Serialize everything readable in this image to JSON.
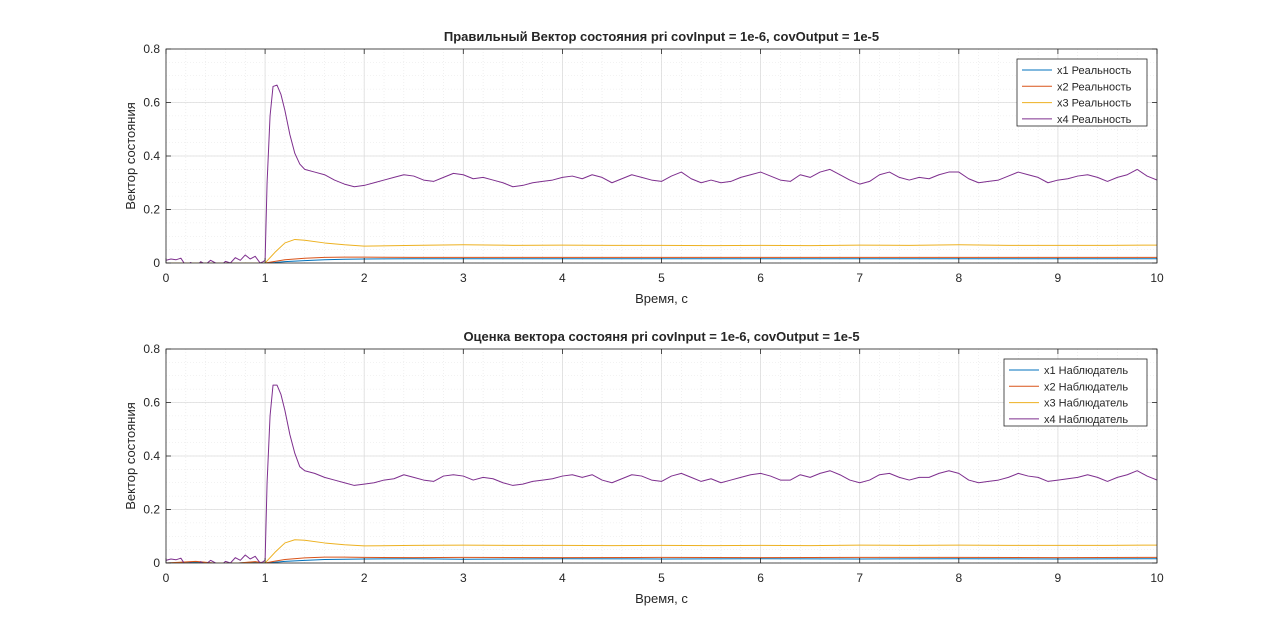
{
  "chart_data": [
    {
      "type": "line",
      "title": "Правильный Вектор состояния pri covInput = 1e-6, covOutput = 1e-5",
      "xlabel": "Время, с",
      "ylabel": "Вектор состояния",
      "xlim": [
        0,
        10
      ],
      "ylim": [
        0,
        0.8
      ],
      "xticks": [
        0,
        1,
        2,
        3,
        4,
        5,
        6,
        7,
        8,
        9,
        10
      ],
      "yticks": [
        0,
        0.2,
        0.4,
        0.6,
        0.8
      ],
      "ytick_labels": [
        "0",
        "0.2",
        "0.4",
        "0.6",
        "0.8"
      ],
      "grid": true,
      "minor_grid": true,
      "legend_position": "top-right",
      "series": [
        {
          "name": "x1 Реальность",
          "color": "#0072BD",
          "x": [
            0,
            1.0,
            1.1,
            1.2,
            1.4,
            1.6,
            1.8,
            2.0,
            2.5,
            3,
            4,
            5,
            6,
            7,
            8,
            9,
            10
          ],
          "y": [
            0,
            0,
            0.002,
            0.005,
            0.009,
            0.012,
            0.014,
            0.015,
            0.016,
            0.016,
            0.016,
            0.016,
            0.016,
            0.016,
            0.016,
            0.016,
            0.016
          ]
        },
        {
          "name": "x2 Реальность",
          "color": "#D95319",
          "x": [
            0,
            1.0,
            1.1,
            1.2,
            1.4,
            1.6,
            1.8,
            2.0,
            2.5,
            3,
            4,
            5,
            6,
            7,
            8,
            9,
            10
          ],
          "y": [
            0,
            0,
            0.006,
            0.012,
            0.018,
            0.021,
            0.022,
            0.022,
            0.021,
            0.021,
            0.021,
            0.021,
            0.021,
            0.021,
            0.021,
            0.021,
            0.021
          ]
        },
        {
          "name": "x3 Реальность",
          "color": "#EDB120",
          "x": [
            0,
            1.0,
            1.1,
            1.2,
            1.3,
            1.4,
            1.6,
            1.8,
            2.0,
            2.5,
            3,
            3.5,
            4,
            4.5,
            5,
            5.5,
            6,
            6.5,
            7,
            7.5,
            8,
            8.5,
            9,
            9.5,
            10
          ],
          "y": [
            0,
            0,
            0.04,
            0.075,
            0.088,
            0.085,
            0.075,
            0.068,
            0.063,
            0.066,
            0.068,
            0.066,
            0.067,
            0.066,
            0.066,
            0.065,
            0.066,
            0.065,
            0.067,
            0.066,
            0.068,
            0.066,
            0.066,
            0.066,
            0.067
          ]
        },
        {
          "name": "x4 Реальность",
          "color": "#7E2F8E",
          "x": [
            0,
            0.05,
            0.1,
            0.15,
            0.2,
            0.25,
            0.3,
            0.35,
            0.4,
            0.45,
            0.5,
            0.55,
            0.6,
            0.65,
            0.7,
            0.75,
            0.8,
            0.85,
            0.9,
            0.95,
            0.98,
            1.0,
            1.02,
            1.05,
            1.08,
            1.12,
            1.16,
            1.2,
            1.25,
            1.3,
            1.35,
            1.4,
            1.5,
            1.6,
            1.7,
            1.8,
            1.9,
            2.0,
            2.1,
            2.2,
            2.3,
            2.4,
            2.5,
            2.6,
            2.7,
            2.8,
            2.9,
            3.0,
            3.1,
            3.2,
            3.3,
            3.4,
            3.5,
            3.6,
            3.7,
            3.8,
            3.9,
            4.0,
            4.1,
            4.2,
            4.3,
            4.4,
            4.5,
            4.6,
            4.7,
            4.8,
            4.9,
            5.0,
            5.1,
            5.2,
            5.3,
            5.4,
            5.5,
            5.6,
            5.7,
            5.8,
            5.9,
            6.0,
            6.1,
            6.2,
            6.3,
            6.4,
            6.5,
            6.6,
            6.7,
            6.8,
            6.9,
            7.0,
            7.1,
            7.2,
            7.3,
            7.4,
            7.5,
            7.6,
            7.7,
            7.8,
            7.9,
            8.0,
            8.1,
            8.2,
            8.3,
            8.4,
            8.5,
            8.6,
            8.7,
            8.8,
            8.9,
            9.0,
            9.1,
            9.2,
            9.3,
            9.4,
            9.5,
            9.6,
            9.7,
            9.8,
            9.9,
            10.0
          ],
          "y": [
            0.01,
            0.015,
            0.012,
            0.018,
            -0.01,
            0.002,
            -0.015,
            0.005,
            -0.005,
            0.01,
            0.0,
            -0.01,
            0.006,
            0.0,
            0.02,
            0.01,
            0.03,
            0.015,
            0.025,
            0.0,
            0.005,
            0.01,
            0.3,
            0.55,
            0.66,
            0.665,
            0.63,
            0.57,
            0.48,
            0.41,
            0.37,
            0.35,
            0.34,
            0.33,
            0.31,
            0.295,
            0.285,
            0.29,
            0.3,
            0.31,
            0.32,
            0.33,
            0.325,
            0.31,
            0.305,
            0.32,
            0.335,
            0.33,
            0.315,
            0.32,
            0.31,
            0.3,
            0.285,
            0.29,
            0.3,
            0.305,
            0.31,
            0.32,
            0.325,
            0.315,
            0.33,
            0.32,
            0.3,
            0.315,
            0.33,
            0.32,
            0.31,
            0.305,
            0.325,
            0.34,
            0.315,
            0.3,
            0.31,
            0.3,
            0.305,
            0.32,
            0.33,
            0.34,
            0.325,
            0.31,
            0.305,
            0.33,
            0.32,
            0.34,
            0.35,
            0.33,
            0.31,
            0.295,
            0.305,
            0.33,
            0.34,
            0.32,
            0.31,
            0.32,
            0.315,
            0.33,
            0.34,
            0.34,
            0.315,
            0.3,
            0.305,
            0.31,
            0.325,
            0.34,
            0.33,
            0.32,
            0.3,
            0.31,
            0.315,
            0.325,
            0.33,
            0.32,
            0.305,
            0.32,
            0.33,
            0.35,
            0.325,
            0.31
          ]
        }
      ]
    },
    {
      "type": "line",
      "title": "Оценка вектора состояня pri covInput = 1e-6, covOutput = 1e-5",
      "xlabel": "Время, с",
      "ylabel": "Вектор состояния",
      "xlim": [
        0,
        10
      ],
      "ylim": [
        0,
        0.8
      ],
      "xticks": [
        0,
        1,
        2,
        3,
        4,
        5,
        6,
        7,
        8,
        9,
        10
      ],
      "yticks": [
        0,
        0.2,
        0.4,
        0.6,
        0.8
      ],
      "ytick_labels": [
        "0",
        "0.2",
        "0.4",
        "0.6",
        "0.8"
      ],
      "grid": true,
      "minor_grid": true,
      "legend_position": "top-right",
      "series": [
        {
          "name": "x1 Наблюдатель",
          "color": "#0072BD",
          "x": [
            0,
            0.3,
            0.6,
            0.9,
            1.0,
            1.1,
            1.2,
            1.4,
            1.6,
            1.8,
            2.0,
            2.5,
            3,
            4,
            5,
            6,
            7,
            8,
            9,
            10
          ],
          "y": [
            0,
            0.004,
            -0.003,
            0.004,
            0,
            0.003,
            0.006,
            0.01,
            0.013,
            0.014,
            0.015,
            0.016,
            0.014,
            0.016,
            0.015,
            0.016,
            0.015,
            0.016,
            0.015,
            0.016
          ]
        },
        {
          "name": "x2 Наблюдатель",
          "color": "#D95319",
          "x": [
            0,
            0.3,
            0.6,
            0.9,
            1.0,
            1.1,
            1.2,
            1.4,
            1.6,
            1.8,
            2.0,
            2.5,
            3,
            4,
            5,
            6,
            7,
            8,
            9,
            10
          ],
          "y": [
            0,
            0.006,
            -0.004,
            0.005,
            0,
            0.007,
            0.013,
            0.019,
            0.022,
            0.022,
            0.021,
            0.02,
            0.021,
            0.02,
            0.021,
            0.02,
            0.021,
            0.021,
            0.02,
            0.021
          ]
        },
        {
          "name": "x3 Наблюдатель",
          "color": "#EDB120",
          "x": [
            0,
            1.0,
            1.1,
            1.2,
            1.3,
            1.4,
            1.6,
            1.8,
            2.0,
            2.5,
            3,
            3.5,
            4,
            4.5,
            5,
            5.5,
            6,
            6.5,
            7,
            7.5,
            8,
            8.5,
            9,
            9.5,
            10
          ],
          "y": [
            0,
            0,
            0.04,
            0.075,
            0.087,
            0.085,
            0.075,
            0.068,
            0.064,
            0.066,
            0.067,
            0.066,
            0.066,
            0.065,
            0.066,
            0.065,
            0.066,
            0.065,
            0.067,
            0.066,
            0.067,
            0.066,
            0.066,
            0.066,
            0.067
          ]
        },
        {
          "name": "x4 Наблюдатель",
          "color": "#7E2F8E",
          "x": [
            0,
            0.05,
            0.1,
            0.15,
            0.2,
            0.25,
            0.3,
            0.35,
            0.4,
            0.45,
            0.5,
            0.55,
            0.6,
            0.65,
            0.7,
            0.75,
            0.8,
            0.85,
            0.9,
            0.95,
            0.98,
            1.0,
            1.02,
            1.05,
            1.08,
            1.12,
            1.16,
            1.2,
            1.25,
            1.3,
            1.35,
            1.4,
            1.5,
            1.6,
            1.7,
            1.8,
            1.9,
            2.0,
            2.1,
            2.2,
            2.3,
            2.4,
            2.5,
            2.6,
            2.7,
            2.8,
            2.9,
            3.0,
            3.1,
            3.2,
            3.3,
            3.4,
            3.5,
            3.6,
            3.7,
            3.8,
            3.9,
            4.0,
            4.1,
            4.2,
            4.3,
            4.4,
            4.5,
            4.6,
            4.7,
            4.8,
            4.9,
            5.0,
            5.1,
            5.2,
            5.3,
            5.4,
            5.5,
            5.6,
            5.7,
            5.8,
            5.9,
            6.0,
            6.1,
            6.2,
            6.3,
            6.4,
            6.5,
            6.6,
            6.7,
            6.8,
            6.9,
            7.0,
            7.1,
            7.2,
            7.3,
            7.4,
            7.5,
            7.6,
            7.7,
            7.8,
            7.9,
            8.0,
            8.1,
            8.2,
            8.3,
            8.4,
            8.5,
            8.6,
            8.7,
            8.8,
            8.9,
            9.0,
            9.1,
            9.2,
            9.3,
            9.4,
            9.5,
            9.6,
            9.7,
            9.8,
            9.9,
            10.0
          ],
          "y": [
            0.01,
            0.015,
            0.012,
            0.018,
            -0.01,
            0.002,
            -0.015,
            0.005,
            -0.005,
            0.01,
            0.0,
            -0.01,
            0.006,
            0.0,
            0.02,
            0.01,
            0.03,
            0.015,
            0.025,
            0.0,
            0.005,
            0.01,
            0.3,
            0.55,
            0.665,
            0.665,
            0.63,
            0.57,
            0.48,
            0.41,
            0.36,
            0.345,
            0.335,
            0.32,
            0.31,
            0.3,
            0.29,
            0.295,
            0.3,
            0.31,
            0.315,
            0.33,
            0.32,
            0.31,
            0.305,
            0.325,
            0.33,
            0.325,
            0.31,
            0.32,
            0.315,
            0.3,
            0.29,
            0.295,
            0.305,
            0.31,
            0.315,
            0.325,
            0.33,
            0.32,
            0.33,
            0.31,
            0.3,
            0.315,
            0.33,
            0.325,
            0.31,
            0.305,
            0.325,
            0.335,
            0.32,
            0.305,
            0.315,
            0.3,
            0.31,
            0.32,
            0.33,
            0.335,
            0.325,
            0.31,
            0.31,
            0.33,
            0.32,
            0.335,
            0.345,
            0.33,
            0.31,
            0.3,
            0.31,
            0.33,
            0.335,
            0.32,
            0.31,
            0.32,
            0.32,
            0.335,
            0.345,
            0.335,
            0.31,
            0.3,
            0.305,
            0.31,
            0.32,
            0.335,
            0.325,
            0.32,
            0.305,
            0.31,
            0.315,
            0.32,
            0.33,
            0.32,
            0.305,
            0.32,
            0.33,
            0.345,
            0.325,
            0.31
          ]
        }
      ]
    }
  ]
}
